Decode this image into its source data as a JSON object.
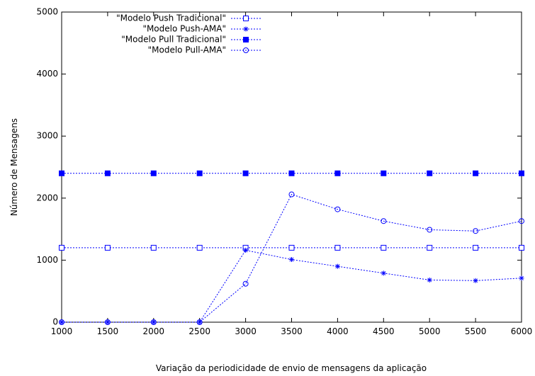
{
  "chart_data": {
    "type": "line",
    "title": "",
    "xlabel": "Variação da periodicidade de envio de mensagens da aplicação",
    "ylabel": "Número de Mensagens",
    "xlim": [
      1000,
      6000
    ],
    "ylim": [
      0,
      5000
    ],
    "x_ticks": [
      1000,
      1500,
      2000,
      2500,
      3000,
      3500,
      4000,
      4500,
      5000,
      5500,
      6000
    ],
    "y_ticks": [
      0,
      1000,
      2000,
      3000,
      4000,
      5000
    ],
    "grid": false,
    "legend_position": "top-left",
    "line_style": "dotted",
    "line_color": "#0000ff",
    "x": [
      1000,
      1500,
      2000,
      2500,
      3000,
      3500,
      4000,
      4500,
      5000,
      5500,
      6000
    ],
    "series": [
      {
        "name": "\"Modelo Push Tradicional\"",
        "marker": "open-square",
        "values": [
          1200,
          1200,
          1200,
          1200,
          1200,
          1200,
          1200,
          1200,
          1200,
          1200,
          1200
        ]
      },
      {
        "name": "\"Modelo Push-AMA\"",
        "marker": "asterisk",
        "values": [
          0,
          0,
          0,
          0,
          1160,
          1010,
          900,
          790,
          680,
          670,
          710
        ]
      },
      {
        "name": "\"Modelo Pull Tradicional\"",
        "marker": "filled-square",
        "values": [
          2400,
          2400,
          2400,
          2400,
          2400,
          2400,
          2400,
          2400,
          2400,
          2400,
          2400
        ]
      },
      {
        "name": "\"Modelo Pull-AMA\"",
        "marker": "open-circle",
        "values": [
          0,
          0,
          0,
          0,
          620,
          2060,
          1820,
          1630,
          1490,
          1470,
          1630
        ]
      }
    ]
  }
}
